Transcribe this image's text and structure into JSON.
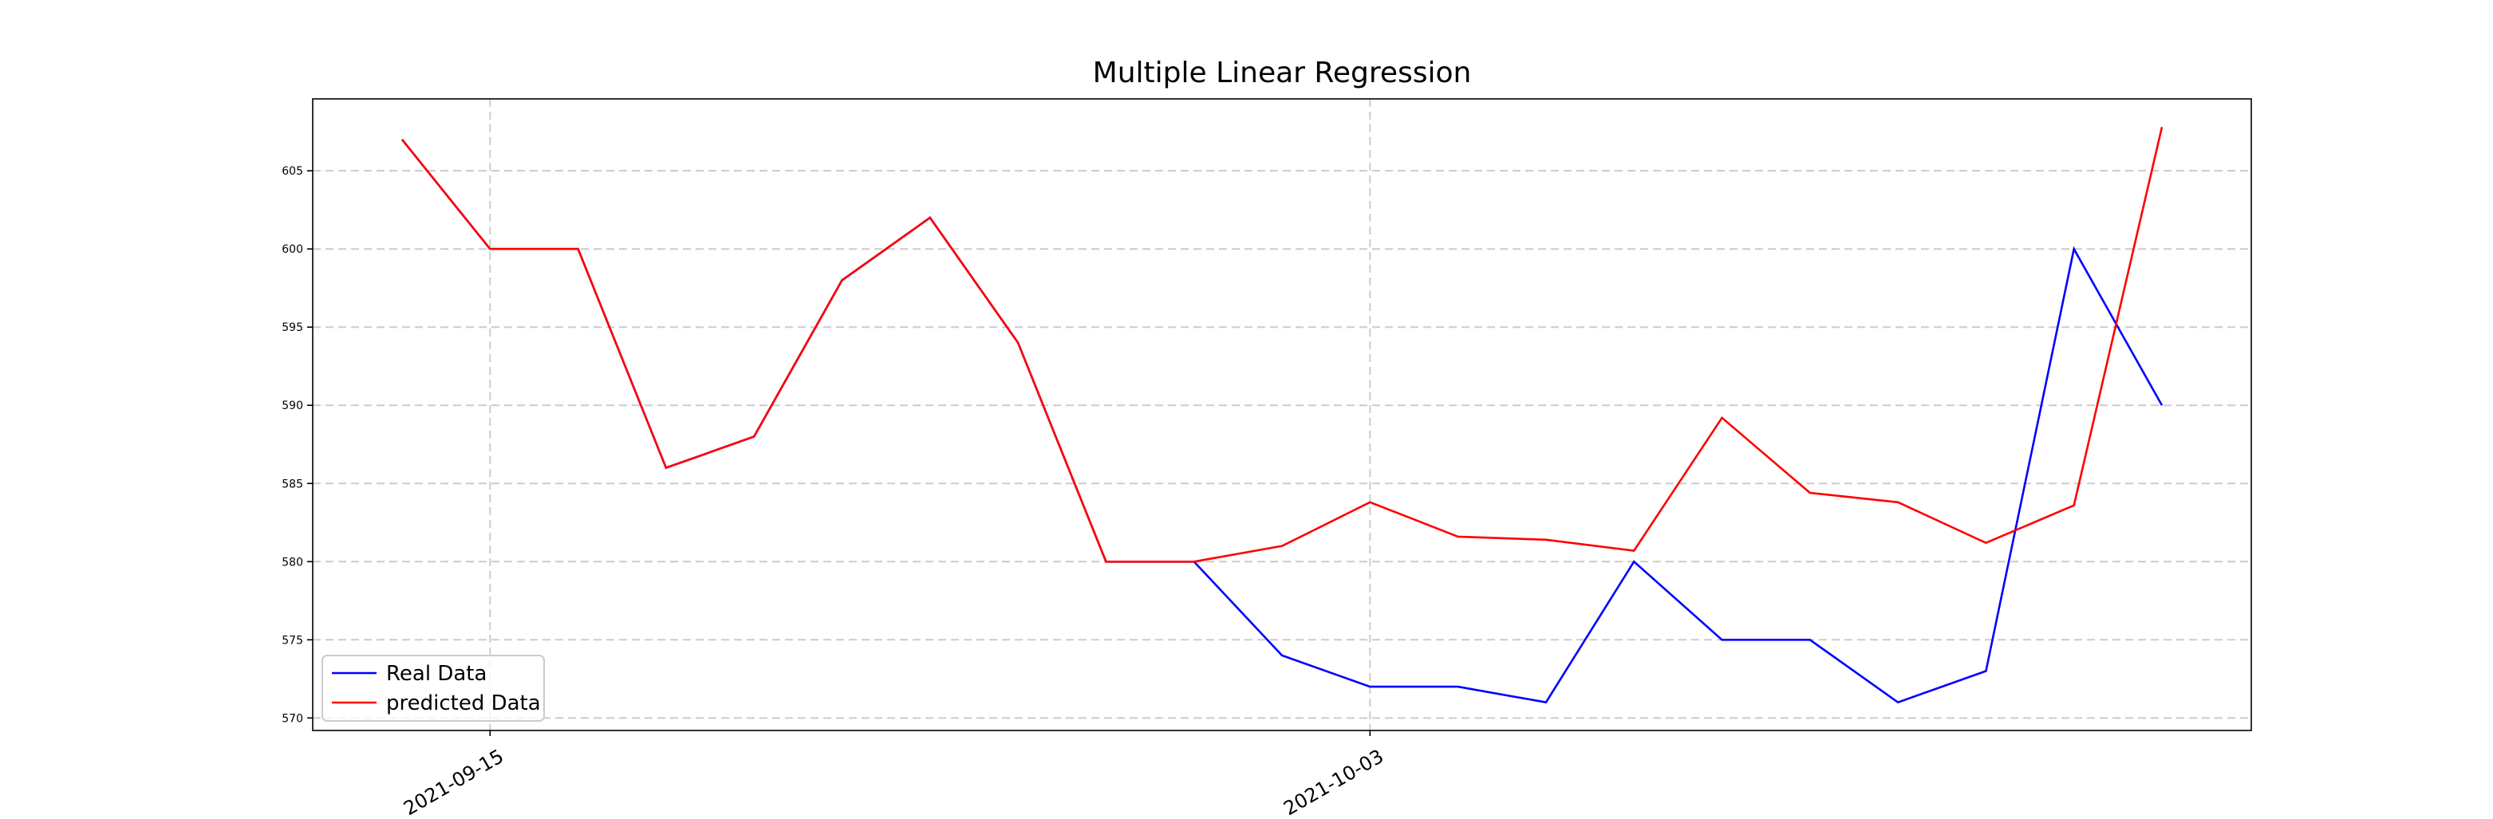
{
  "chart_data": {
    "type": "line",
    "title": "Multiple Linear Regression",
    "categories": [
      null,
      "2021-09-15",
      null,
      null,
      null,
      null,
      null,
      null,
      null,
      null,
      null,
      "2021-10-03",
      null,
      null,
      null,
      null,
      null,
      null,
      null,
      null,
      null
    ],
    "series": [
      {
        "name": "Real Data",
        "color": "#0000ff",
        "values": [
          607,
          600,
          600,
          586,
          588,
          598,
          602,
          594,
          580,
          580,
          574,
          572,
          572,
          571,
          580,
          575,
          575,
          571,
          573,
          600,
          590
        ]
      },
      {
        "name": "predicted Data",
        "color": "#ff0000",
        "values": [
          607,
          600,
          600,
          586,
          588,
          598,
          602,
          594,
          580,
          580,
          581,
          583.8,
          581.6,
          581.4,
          580.7,
          589.2,
          584.4,
          583.8,
          581.2,
          583.6,
          607.8
        ]
      }
    ],
    "ylim": [
      569.2,
      609.6
    ],
    "yticks": [
      570,
      575,
      580,
      585,
      590,
      595,
      600,
      605
    ],
    "grid": true,
    "legend": "lower left"
  }
}
